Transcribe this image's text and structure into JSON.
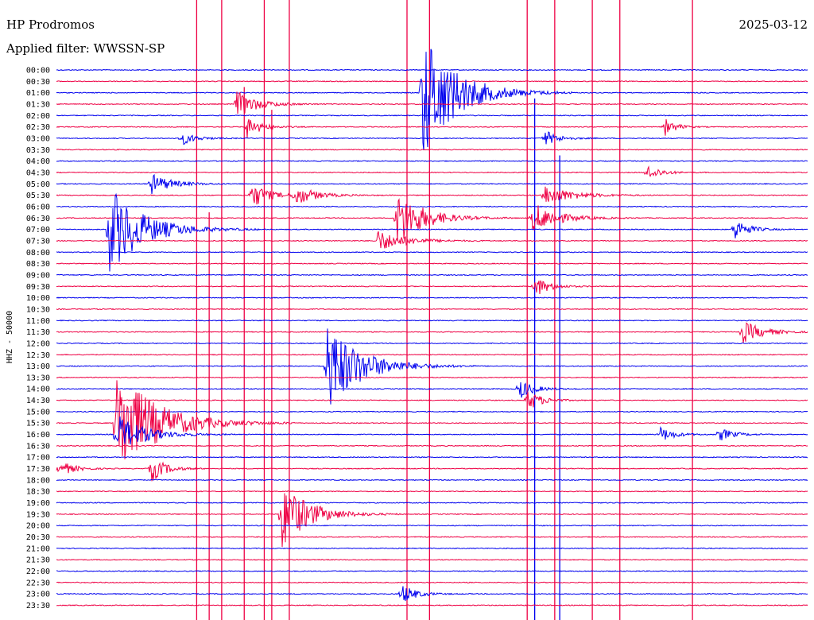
{
  "header": {
    "station": "HP Prodromos",
    "date": "2025-03-12",
    "filter": "Applied filter: WWSSN-SP"
  },
  "chart_data": {
    "type": "line",
    "title": "HP Prodromos",
    "subtitle": "Applied filter: WWSSN-SP",
    "date": "2025-03-12",
    "ylabel": "HHZ - 50000",
    "xlabel": "",
    "row_interval_minutes": 30,
    "row_labels": [
      "00:00",
      "00:30",
      "01:00",
      "01:30",
      "02:00",
      "02:30",
      "03:00",
      "03:30",
      "04:00",
      "04:30",
      "05:00",
      "05:30",
      "06:00",
      "06:30",
      "07:00",
      "07:30",
      "08:00",
      "08:30",
      "09:00",
      "09:30",
      "10:00",
      "10:30",
      "11:00",
      "11:30",
      "12:00",
      "12:30",
      "13:00",
      "13:30",
      "14:00",
      "14:30",
      "15:00",
      "15:30",
      "16:00",
      "16:30",
      "17:00",
      "17:30",
      "18:00",
      "18:30",
      "19:00",
      "19:30",
      "20:00",
      "20:30",
      "21:00",
      "21:30",
      "22:00",
      "22:30",
      "23:00",
      "23:30"
    ],
    "colors": {
      "even_rows": "#0000ee",
      "odd_rows": "#ee0044"
    },
    "events": [
      {
        "row": 2,
        "minute": 14.6,
        "amp": 6.0,
        "dur": 2.5
      },
      {
        "row": 3,
        "minute": 7.2,
        "amp": 1.2,
        "dur": 1.5
      },
      {
        "row": 5,
        "minute": 7.6,
        "amp": 1.0,
        "dur": 1.0
      },
      {
        "row": 5,
        "minute": 24.3,
        "amp": 0.8,
        "dur": 0.8
      },
      {
        "row": 6,
        "minute": 5.0,
        "amp": 0.6,
        "dur": 1.0
      },
      {
        "row": 6,
        "minute": 19.5,
        "amp": 0.7,
        "dur": 1.0
      },
      {
        "row": 9,
        "minute": 23.6,
        "amp": 0.7,
        "dur": 1.0
      },
      {
        "row": 10,
        "minute": 3.8,
        "amp": 0.9,
        "dur": 1.5
      },
      {
        "row": 11,
        "minute": 7.8,
        "amp": 1.2,
        "dur": 1.2
      },
      {
        "row": 11,
        "minute": 9.5,
        "amp": 0.9,
        "dur": 1.5
      },
      {
        "row": 11,
        "minute": 19.5,
        "amp": 0.9,
        "dur": 2.0
      },
      {
        "row": 13,
        "minute": 13.6,
        "amp": 2.5,
        "dur": 2.0
      },
      {
        "row": 13,
        "minute": 19.0,
        "amp": 1.4,
        "dur": 1.8
      },
      {
        "row": 14,
        "minute": 2.1,
        "amp": 4.0,
        "dur": 2.5
      },
      {
        "row": 14,
        "minute": 27.1,
        "amp": 1.0,
        "dur": 1.0
      },
      {
        "row": 15,
        "minute": 12.8,
        "amp": 1.0,
        "dur": 2.0
      },
      {
        "row": 19,
        "minute": 19.1,
        "amp": 1.0,
        "dur": 1.0
      },
      {
        "row": 23,
        "minute": 27.4,
        "amp": 1.0,
        "dur": 1.5
      },
      {
        "row": 26,
        "minute": 10.8,
        "amp": 4.0,
        "dur": 2.5
      },
      {
        "row": 28,
        "minute": 18.5,
        "amp": 0.9,
        "dur": 1.0
      },
      {
        "row": 29,
        "minute": 18.8,
        "amp": 1.0,
        "dur": 1.0
      },
      {
        "row": 31,
        "minute": 2.4,
        "amp": 5.0,
        "dur": 3.0
      },
      {
        "row": 32,
        "minute": 2.4,
        "amp": 1.8,
        "dur": 2.0
      },
      {
        "row": 32,
        "minute": 24.1,
        "amp": 0.7,
        "dur": 1.0
      },
      {
        "row": 32,
        "minute": 26.5,
        "amp": 0.6,
        "dur": 1.0
      },
      {
        "row": 35,
        "minute": 0.1,
        "amp": 0.8,
        "dur": 1.0
      },
      {
        "row": 35,
        "minute": 3.8,
        "amp": 1.2,
        "dur": 1.0
      },
      {
        "row": 39,
        "minute": 9.0,
        "amp": 3.0,
        "dur": 2.0
      },
      {
        "row": 46,
        "minute": 13.8,
        "amp": 0.9,
        "dur": 1.0
      }
    ],
    "spikes": [
      {
        "minute": 5.6,
        "from_row": 0,
        "to_row": 47,
        "color": "odd"
      },
      {
        "minute": 6.1,
        "from_row": 13,
        "to_row": 47,
        "color": "odd"
      },
      {
        "minute": 6.6,
        "from_row": 0,
        "to_row": 47,
        "color": "odd"
      },
      {
        "minute": 7.5,
        "from_row": 2,
        "to_row": 47,
        "color": "odd"
      },
      {
        "minute": 8.3,
        "from_row": 0,
        "to_row": 47,
        "color": "odd"
      },
      {
        "minute": 8.6,
        "from_row": 4,
        "to_row": 47,
        "color": "odd"
      },
      {
        "minute": 9.3,
        "from_row": 0,
        "to_row": 47,
        "color": "odd"
      },
      {
        "minute": 14.0,
        "from_row": 0,
        "to_row": 47,
        "color": "odd"
      },
      {
        "minute": 14.9,
        "from_row": 0,
        "to_row": 47,
        "color": "odd"
      },
      {
        "minute": 18.8,
        "from_row": 0,
        "to_row": 47,
        "color": "odd"
      },
      {
        "minute": 19.1,
        "from_row": 3,
        "to_row": 47,
        "color": "even"
      },
      {
        "minute": 19.9,
        "from_row": 0,
        "to_row": 47,
        "color": "odd"
      },
      {
        "minute": 20.1,
        "from_row": 8,
        "to_row": 47,
        "color": "even"
      },
      {
        "minute": 21.4,
        "from_row": 0,
        "to_row": 47,
        "color": "odd"
      },
      {
        "minute": 22.5,
        "from_row": 0,
        "to_row": 47,
        "color": "odd"
      },
      {
        "minute": 25.4,
        "from_row": 0,
        "to_row": 47,
        "color": "odd"
      }
    ]
  }
}
